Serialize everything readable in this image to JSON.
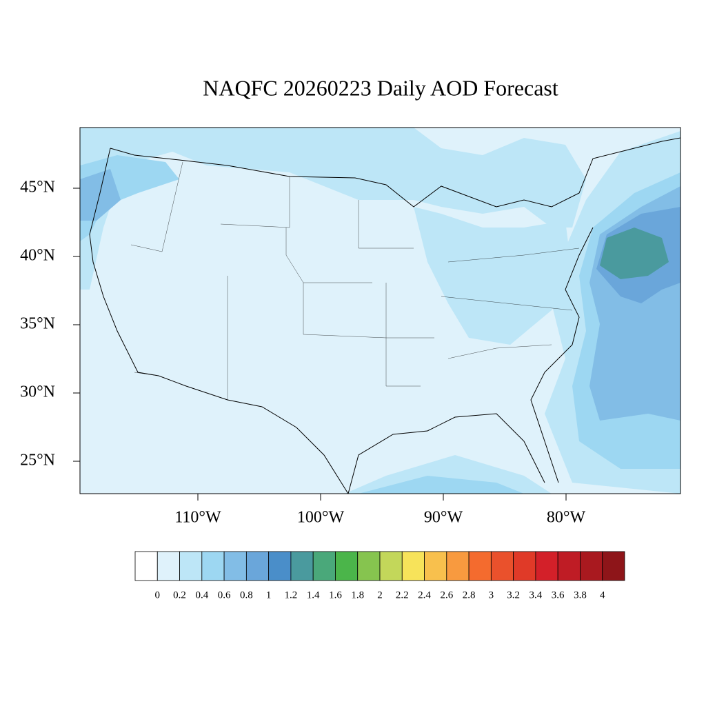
{
  "title": "NAQFC 20260223 Daily AOD Forecast",
  "map": {
    "lat_ticks": [
      {
        "value": 25,
        "label": "25°N"
      },
      {
        "value": 30,
        "label": "30°N"
      },
      {
        "value": 35,
        "label": "35°N"
      },
      {
        "value": 40,
        "label": "40°N"
      },
      {
        "value": 45,
        "label": "45°N"
      }
    ],
    "lon_ticks": [
      {
        "value": -110,
        "label": "110°W"
      },
      {
        "value": -100,
        "label": "100°W"
      },
      {
        "value": -90,
        "label": "90°W"
      },
      {
        "value": -80,
        "label": "80°W"
      }
    ]
  },
  "colorbar": {
    "levels": [
      0,
      0.2,
      0.4,
      0.6,
      0.8,
      1,
      1.2,
      1.4,
      1.6,
      1.8,
      2,
      2.2,
      2.4,
      2.6,
      2.8,
      3,
      3.2,
      3.4,
      3.6,
      3.8,
      4
    ],
    "colors": [
      "#ffffff",
      "#dff2fb",
      "#bde6f7",
      "#9dd7f2",
      "#82bde6",
      "#6aa6da",
      "#4a8ec9",
      "#4a9a9e",
      "#4aa87a",
      "#4bb54a",
      "#86c44f",
      "#c3d75a",
      "#f7e35a",
      "#f8c04d",
      "#f89a3f",
      "#f46b2e",
      "#ea512c",
      "#e03a28",
      "#d32029",
      "#bf1c25",
      "#a9191f",
      "#8e1519"
    ]
  }
}
